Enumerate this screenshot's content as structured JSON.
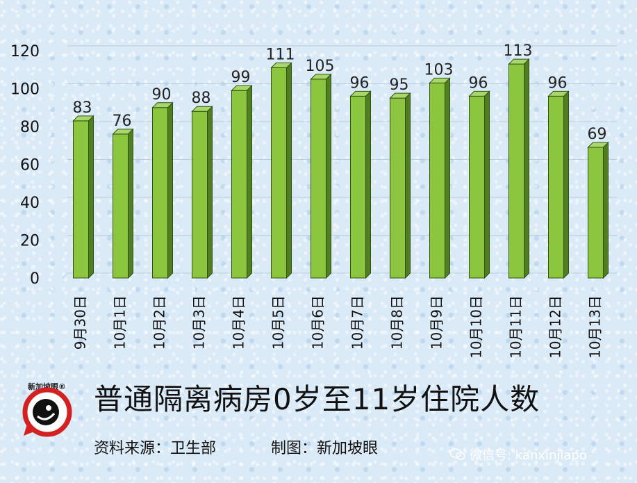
{
  "chart_data": {
    "type": "bar",
    "categories": [
      "9月30日",
      "10月1日",
      "10月2日",
      "10月3日",
      "10月4日",
      "10月5日",
      "10月6日",
      "10月7日",
      "10月8日",
      "10月9日",
      "10月10日",
      "10月11日",
      "10月12日",
      "10月13日"
    ],
    "values": [
      83,
      76,
      90,
      88,
      99,
      111,
      105,
      96,
      95,
      103,
      96,
      113,
      96,
      69
    ],
    "title": "普通隔离病房0岁至11岁住院人数",
    "ylim": [
      0,
      120
    ],
    "yticks": [
      0,
      20,
      40,
      60,
      80,
      100,
      120
    ],
    "grid": true,
    "bar_color": "#8cc63f",
    "bar_side_color": "#4f7f1f",
    "bar_top_color": "#a9d76a",
    "bar_edge_color": "#2f4f14"
  },
  "footer": {
    "source": "资料来源：卫生部",
    "credit": "制图：新加坡眼",
    "wechat": "微信号: kanxinjiapo",
    "logo_text": "新加坡眼®"
  }
}
